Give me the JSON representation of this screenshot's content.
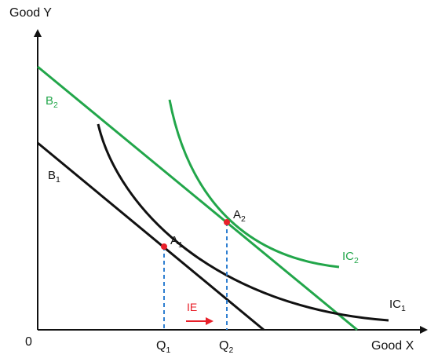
{
  "axes": {
    "y_label": "Good Y",
    "x_label": "Good X",
    "origin_label": "0"
  },
  "labels": {
    "b2": {
      "main": "B",
      "sub": "2"
    },
    "b1": {
      "main": "B",
      "sub": "1"
    },
    "ic1": {
      "main": "IC",
      "sub": "1"
    },
    "ic2": {
      "main": "IC",
      "sub": "2"
    },
    "a1": {
      "main": "A",
      "sub": "1"
    },
    "a2": {
      "main": "A",
      "sub": "2"
    },
    "q1": {
      "main": "Q",
      "sub": "1"
    },
    "q2": {
      "main": "Q",
      "sub": "2"
    },
    "effect": "IE"
  },
  "colors": {
    "axis": "#111111",
    "budget1": "#111111",
    "budget2": "#22a64a",
    "ic1": "#111111",
    "ic2": "#22a64a",
    "points": "#e8202a",
    "guides": "#2f7fd1",
    "effect_arrow": "#e8202a",
    "green_text": "#22a64a"
  }
}
